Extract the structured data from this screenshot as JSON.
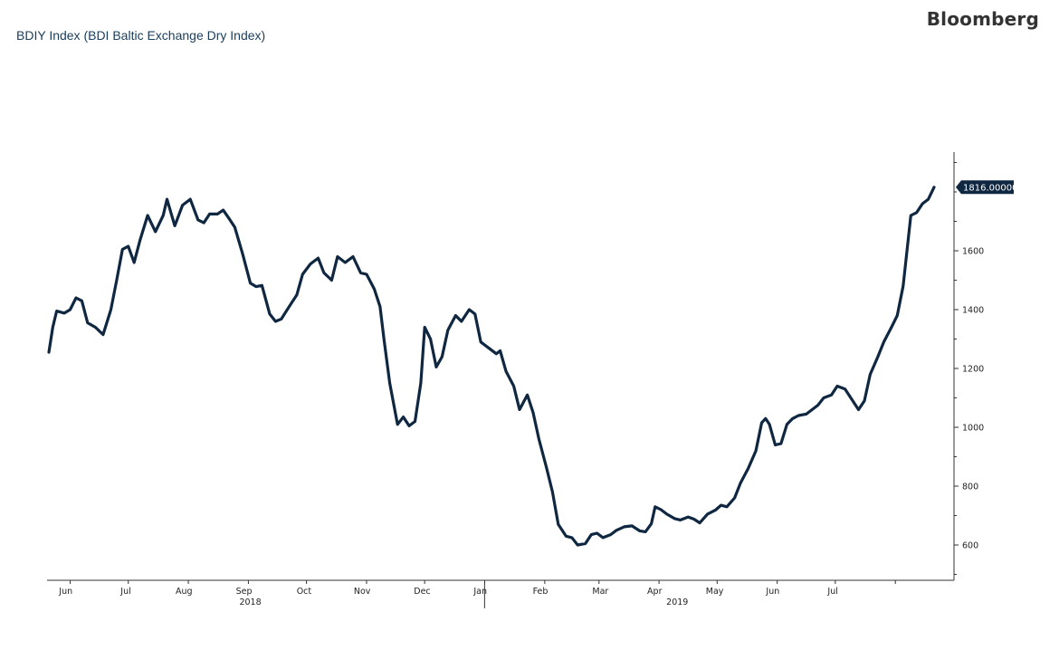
{
  "header": {
    "title": "BDIY Index (BDI Baltic Exchange Dry Index)",
    "brand": "Bloomberg"
  },
  "colors": {
    "line": "#0f2740",
    "axis": "#333333",
    "badge_bg": "#0f2740",
    "background": "#ffffff"
  },
  "chart_data": {
    "type": "line",
    "title": "BDIY Index (BDI Baltic Exchange Dry Index)",
    "xlabel": "",
    "ylabel": "",
    "ylim": [
      480,
      1900
    ],
    "y_ticks": [
      600,
      800,
      1000,
      1200,
      1400,
      1600
    ],
    "y_axis_position": "right",
    "grid": false,
    "legend": "none",
    "x_tick_labels": [
      "Jun",
      "Jul",
      "Aug",
      "Sep",
      "Oct",
      "Nov",
      "Dec",
      "Jan",
      "Feb",
      "Mar",
      "Apr",
      "May",
      "Jun",
      "Jul"
    ],
    "year_labels": [
      "2018",
      "2019"
    ],
    "last_value_label": "1816.00000",
    "series": [
      {
        "values": [
          [
            "2018-05-21",
            1255
          ],
          [
            "2018-05-23",
            1340
          ],
          [
            "2018-05-25",
            1395
          ],
          [
            "2018-05-29",
            1388
          ],
          [
            "2018-06-01",
            1400
          ],
          [
            "2018-06-04",
            1440
          ],
          [
            "2018-06-07",
            1430
          ],
          [
            "2018-06-10",
            1355
          ],
          [
            "2018-06-14",
            1340
          ],
          [
            "2018-06-18",
            1315
          ],
          [
            "2018-06-22",
            1400
          ],
          [
            "2018-06-25",
            1500
          ],
          [
            "2018-06-28",
            1605
          ],
          [
            "2018-07-01",
            1615
          ],
          [
            "2018-07-04",
            1560
          ],
          [
            "2018-07-07",
            1635
          ],
          [
            "2018-07-11",
            1720
          ],
          [
            "2018-07-15",
            1665
          ],
          [
            "2018-07-19",
            1720
          ],
          [
            "2018-07-21",
            1775
          ],
          [
            "2018-07-25",
            1685
          ],
          [
            "2018-07-29",
            1755
          ],
          [
            "2018-08-02",
            1775
          ],
          [
            "2018-08-06",
            1705
          ],
          [
            "2018-08-09",
            1695
          ],
          [
            "2018-08-12",
            1725
          ],
          [
            "2018-08-16",
            1725
          ],
          [
            "2018-08-19",
            1738
          ],
          [
            "2018-08-22",
            1710
          ],
          [
            "2018-08-25",
            1680
          ],
          [
            "2018-08-29",
            1590
          ],
          [
            "2018-09-02",
            1490
          ],
          [
            "2018-09-05",
            1478
          ],
          [
            "2018-09-08",
            1482
          ],
          [
            "2018-09-12",
            1385
          ],
          [
            "2018-09-15",
            1360
          ],
          [
            "2018-09-18",
            1368
          ],
          [
            "2018-09-22",
            1410
          ],
          [
            "2018-09-26",
            1450
          ],
          [
            "2018-09-29",
            1520
          ],
          [
            "2018-10-03",
            1555
          ],
          [
            "2018-10-07",
            1575
          ],
          [
            "2018-10-10",
            1525
          ],
          [
            "2018-10-14",
            1500
          ],
          [
            "2018-10-17",
            1580
          ],
          [
            "2018-10-21",
            1560
          ],
          [
            "2018-10-25",
            1580
          ],
          [
            "2018-10-29",
            1525
          ],
          [
            "2018-11-01",
            1520
          ],
          [
            "2018-11-05",
            1470
          ],
          [
            "2018-11-08",
            1410
          ],
          [
            "2018-11-10",
            1300
          ],
          [
            "2018-11-13",
            1150
          ],
          [
            "2018-11-17",
            1010
          ],
          [
            "2018-11-20",
            1035
          ],
          [
            "2018-11-23",
            1005
          ],
          [
            "2018-11-26",
            1020
          ],
          [
            "2018-11-29",
            1150
          ],
          [
            "2018-12-01",
            1340
          ],
          [
            "2018-12-04",
            1300
          ],
          [
            "2018-12-07",
            1205
          ],
          [
            "2018-12-10",
            1240
          ],
          [
            "2018-12-13",
            1330
          ],
          [
            "2018-12-17",
            1380
          ],
          [
            "2018-12-20",
            1360
          ],
          [
            "2018-12-24",
            1400
          ],
          [
            "2018-12-27",
            1385
          ],
          [
            "2018-12-30",
            1290
          ],
          [
            "2019-01-03",
            1270
          ],
          [
            "2019-01-07",
            1250
          ],
          [
            "2019-01-09",
            1260
          ],
          [
            "2019-01-12",
            1190
          ],
          [
            "2019-01-16",
            1140
          ],
          [
            "2019-01-19",
            1060
          ],
          [
            "2019-01-23",
            1110
          ],
          [
            "2019-01-26",
            1050
          ],
          [
            "2019-01-29",
            960
          ],
          [
            "2019-02-02",
            860
          ],
          [
            "2019-02-05",
            780
          ],
          [
            "2019-02-08",
            670
          ],
          [
            "2019-02-12",
            630
          ],
          [
            "2019-02-15",
            625
          ],
          [
            "2019-02-18",
            600
          ],
          [
            "2019-02-22",
            605
          ],
          [
            "2019-02-25",
            635
          ],
          [
            "2019-02-28",
            640
          ],
          [
            "2019-03-03",
            625
          ],
          [
            "2019-03-07",
            635
          ],
          [
            "2019-03-10",
            650
          ],
          [
            "2019-03-14",
            662
          ],
          [
            "2019-03-18",
            665
          ],
          [
            "2019-03-22",
            648
          ],
          [
            "2019-03-25",
            645
          ],
          [
            "2019-03-28",
            672
          ],
          [
            "2019-03-30",
            730
          ],
          [
            "2019-04-02",
            720
          ],
          [
            "2019-04-05",
            705
          ],
          [
            "2019-04-09",
            690
          ],
          [
            "2019-04-12",
            685
          ],
          [
            "2019-04-16",
            695
          ],
          [
            "2019-04-19",
            688
          ],
          [
            "2019-04-22",
            675
          ],
          [
            "2019-04-26",
            705
          ],
          [
            "2019-04-30",
            718
          ],
          [
            "2019-05-03",
            735
          ],
          [
            "2019-05-06",
            730
          ],
          [
            "2019-05-10",
            760
          ],
          [
            "2019-05-13",
            810
          ],
          [
            "2019-05-17",
            860
          ],
          [
            "2019-05-21",
            920
          ],
          [
            "2019-05-24",
            1015
          ],
          [
            "2019-05-26",
            1030
          ],
          [
            "2019-05-28",
            1010
          ],
          [
            "2019-05-31",
            940
          ],
          [
            "2019-06-03",
            945
          ],
          [
            "2019-06-06",
            1010
          ],
          [
            "2019-06-09",
            1030
          ],
          [
            "2019-06-12",
            1040
          ],
          [
            "2019-06-16",
            1045
          ],
          [
            "2019-06-19",
            1060
          ],
          [
            "2019-06-22",
            1075
          ],
          [
            "2019-06-25",
            1100
          ],
          [
            "2019-06-29",
            1110
          ],
          [
            "2019-07-02",
            1140
          ],
          [
            "2019-07-06",
            1130
          ],
          [
            "2019-07-09",
            1100
          ],
          [
            "2019-07-13",
            1060
          ],
          [
            "2019-07-16",
            1090
          ],
          [
            "2019-07-19",
            1180
          ],
          [
            "2019-07-23",
            1240
          ],
          [
            "2019-07-26",
            1290
          ],
          [
            "2019-07-30",
            1340
          ],
          [
            "2019-08-02",
            1380
          ],
          [
            "2019-08-05",
            1480
          ],
          [
            "2019-08-09",
            1720
          ],
          [
            "2019-08-12",
            1730
          ],
          [
            "2019-08-15",
            1760
          ],
          [
            "2019-08-18",
            1775
          ],
          [
            "2019-08-21",
            1816
          ]
        ]
      }
    ]
  }
}
